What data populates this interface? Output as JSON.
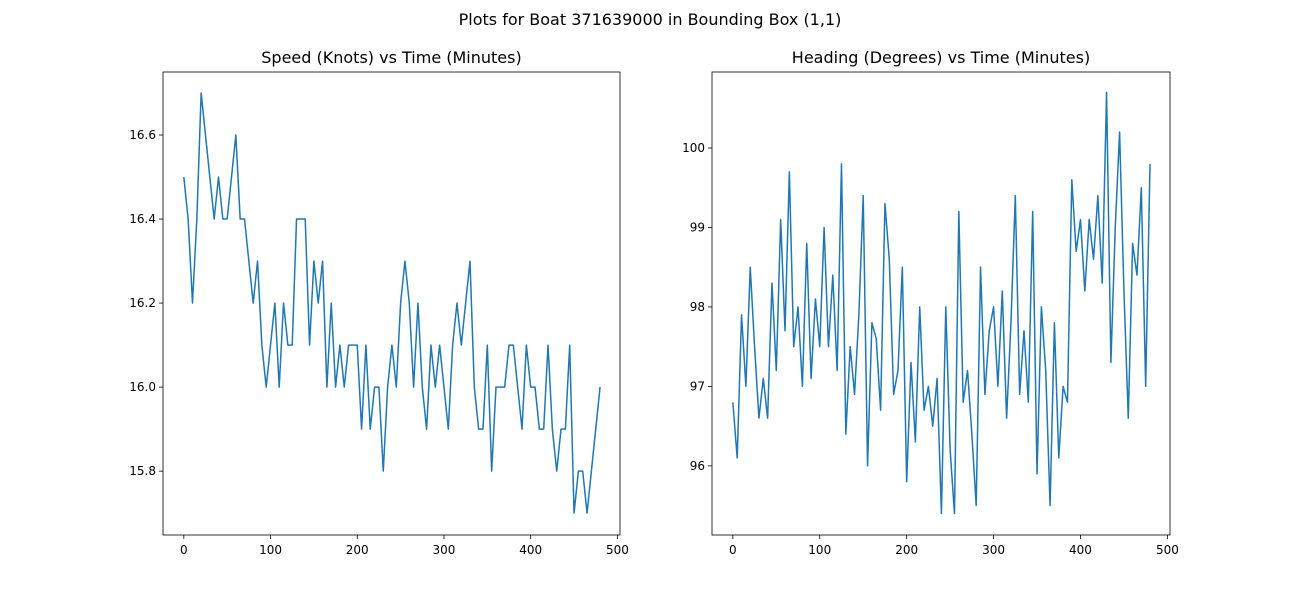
{
  "title": "Plots for Boat 371639000 in Bounding Box (1,1)",
  "chart_data": [
    {
      "type": "line",
      "title": "Speed (Knots) vs Time (Minutes)",
      "color": "#1f77b4",
      "x": [
        0,
        5,
        10,
        15,
        20,
        25,
        30,
        35,
        40,
        45,
        50,
        55,
        60,
        65,
        70,
        75,
        80,
        85,
        90,
        95,
        100,
        105,
        110,
        115,
        120,
        125,
        130,
        135,
        140,
        145,
        150,
        155,
        160,
        165,
        170,
        175,
        180,
        185,
        190,
        195,
        200,
        205,
        210,
        215,
        220,
        225,
        230,
        235,
        240,
        245,
        250,
        255,
        260,
        265,
        270,
        275,
        280,
        285,
        290,
        295,
        300,
        305,
        310,
        315,
        320,
        325,
        330,
        335,
        340,
        345,
        350,
        355,
        360,
        365,
        370,
        375,
        380,
        385,
        390,
        395,
        400,
        405,
        410,
        415,
        420,
        425,
        430,
        435,
        440,
        445,
        450,
        455,
        460,
        465,
        470,
        475,
        480
      ],
      "values": [
        16.5,
        16.4,
        16.2,
        16.4,
        16.7,
        16.6,
        16.5,
        16.4,
        16.5,
        16.4,
        16.4,
        16.5,
        16.6,
        16.4,
        16.4,
        16.3,
        16.2,
        16.3,
        16.1,
        16.0,
        16.1,
        16.2,
        16.0,
        16.2,
        16.1,
        16.1,
        16.4,
        16.4,
        16.4,
        16.1,
        16.3,
        16.2,
        16.3,
        16.0,
        16.2,
        16.0,
        16.1,
        16.0,
        16.1,
        16.1,
        16.1,
        15.9,
        16.1,
        15.9,
        16.0,
        16.0,
        15.8,
        16.0,
        16.1,
        16.0,
        16.2,
        16.3,
        16.2,
        16.0,
        16.2,
        16.0,
        15.9,
        16.1,
        16.0,
        16.1,
        16.0,
        15.9,
        16.1,
        16.2,
        16.1,
        16.2,
        16.3,
        16.0,
        15.9,
        15.9,
        16.1,
        15.8,
        16.0,
        16.0,
        16.0,
        16.1,
        16.1,
        16.0,
        15.9,
        16.1,
        16.0,
        16.0,
        15.9,
        15.9,
        16.1,
        15.9,
        15.8,
        15.9,
        15.9,
        16.1,
        15.7,
        15.8,
        15.8,
        15.7,
        15.8,
        15.9,
        16.0
      ],
      "xlim": [
        -24,
        503
      ],
      "ylim": [
        15.648,
        16.75
      ],
      "xticks": [
        0,
        100,
        200,
        300,
        400,
        500
      ],
      "yticks": [
        15.8,
        {
          "value": 16,
          "label": "16.0"
        },
        16.2,
        16.4,
        16.6
      ]
    },
    {
      "type": "line",
      "title": "Heading (Degrees) vs Time (Minutes)",
      "color": "#1f77b4",
      "x": [
        0,
        5,
        10,
        15,
        20,
        25,
        30,
        35,
        40,
        45,
        50,
        55,
        60,
        65,
        70,
        75,
        80,
        85,
        90,
        95,
        100,
        105,
        110,
        115,
        120,
        125,
        130,
        135,
        140,
        145,
        150,
        155,
        160,
        165,
        170,
        175,
        180,
        185,
        190,
        195,
        200,
        205,
        210,
        215,
        220,
        225,
        230,
        235,
        240,
        245,
        250,
        255,
        260,
        265,
        270,
        275,
        280,
        285,
        290,
        295,
        300,
        305,
        310,
        315,
        320,
        325,
        330,
        335,
        340,
        345,
        350,
        355,
        360,
        365,
        370,
        375,
        380,
        385,
        390,
        395,
        400,
        405,
        410,
        415,
        420,
        425,
        430,
        435,
        440,
        445,
        450,
        455,
        460,
        465,
        470,
        475,
        480
      ],
      "values": [
        96.8,
        96.1,
        97.9,
        97.0,
        98.5,
        97.5,
        96.6,
        97.1,
        96.6,
        98.3,
        97.2,
        99.1,
        97.7,
        99.7,
        97.5,
        98.0,
        97.0,
        98.8,
        97.1,
        98.1,
        97.5,
        99.0,
        97.5,
        98.4,
        97.2,
        99.8,
        96.4,
        97.5,
        96.9,
        97.9,
        99.4,
        96.0,
        97.8,
        97.6,
        96.7,
        99.3,
        98.6,
        96.9,
        97.2,
        98.5,
        95.8,
        97.3,
        96.3,
        98.0,
        96.7,
        97.0,
        96.5,
        97.1,
        95.4,
        98.0,
        96.2,
        95.4,
        99.2,
        96.8,
        97.2,
        96.4,
        95.5,
        98.5,
        96.9,
        97.7,
        98.0,
        97.0,
        98.2,
        96.6,
        97.8,
        99.4,
        96.9,
        97.7,
        96.8,
        99.2,
        95.9,
        98.0,
        97.2,
        95.5,
        97.8,
        96.1,
        97.0,
        96.8,
        99.6,
        98.7,
        99.1,
        98.2,
        99.1,
        98.6,
        99.4,
        98.3,
        100.7,
        97.3,
        99.0,
        100.2,
        98.2,
        96.6,
        98.8,
        98.4,
        99.5,
        97.0,
        99.8
      ],
      "xlim": [
        -24,
        503
      ],
      "ylim": [
        95.13,
        100.956
      ],
      "xticks": [
        0,
        100,
        200,
        300,
        400,
        500
      ],
      "yticks": [
        96,
        97,
        98,
        99,
        100
      ]
    }
  ]
}
